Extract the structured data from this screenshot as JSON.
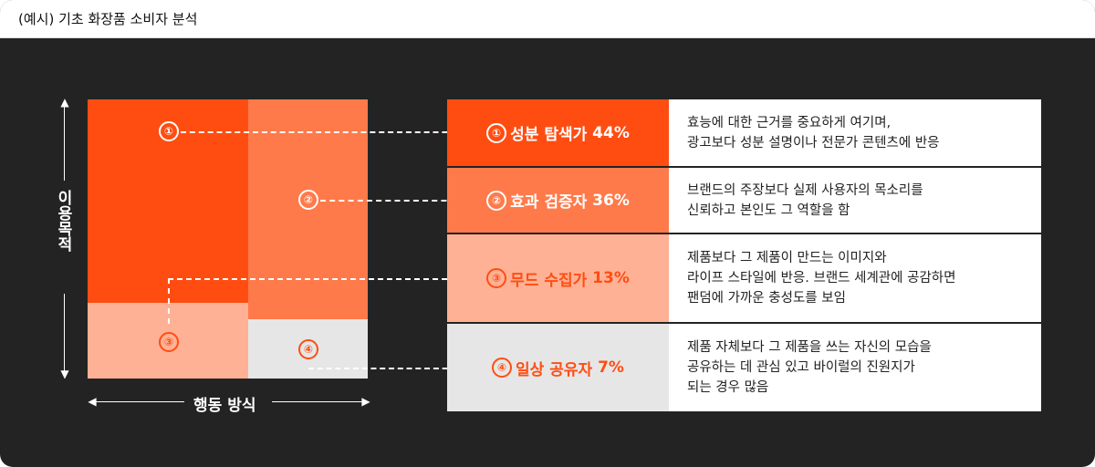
{
  "header": {
    "title": "(예시) 기초 화장품 소비자 분석"
  },
  "axes": {
    "vertical_label": "이용목적",
    "horizontal_label": "행동 방식"
  },
  "markers": [
    "①",
    "②",
    "③",
    "④"
  ],
  "segments": [
    {
      "marker": "①",
      "name": "성분 탐색가",
      "percent": "44%",
      "color": "#ff4d12",
      "text_color": "#ffffff",
      "description": [
        "효능에 대한 근거를 중요하게 여기며,",
        "광고보다 성분 설명이나 전문가 콘텐츠에 반응"
      ]
    },
    {
      "marker": "②",
      "name": "효과 검증자",
      "percent": "36%",
      "color": "#ff7a4a",
      "text_color": "#ffffff",
      "description": [
        "브랜드의 주장보다 실제 사용자의 목소리를",
        "신뢰하고 본인도 그 역할을 함"
      ]
    },
    {
      "marker": "③",
      "name": "무드 수집가",
      "percent": "13%",
      "color": "#ffb195",
      "text_color": "#ff4d12",
      "description": [
        "제품보다 그 제품이 만드는 이미지와",
        "라이프 스타일에 반응. 브랜드 세계관에 공감하면",
        "팬덤에 가까운 충성도를 보임"
      ]
    },
    {
      "marker": "④",
      "name": "일상 공유자",
      "percent": "7%",
      "color": "#e6e6e6",
      "text_color": "#ff4d12",
      "description": [
        "제품 자체보다 그 제품을 쓰는 자신의 모습을",
        "공유하는 데 관심 있고 바이럴의 진원지가",
        "되는 경우 많음"
      ]
    }
  ]
}
